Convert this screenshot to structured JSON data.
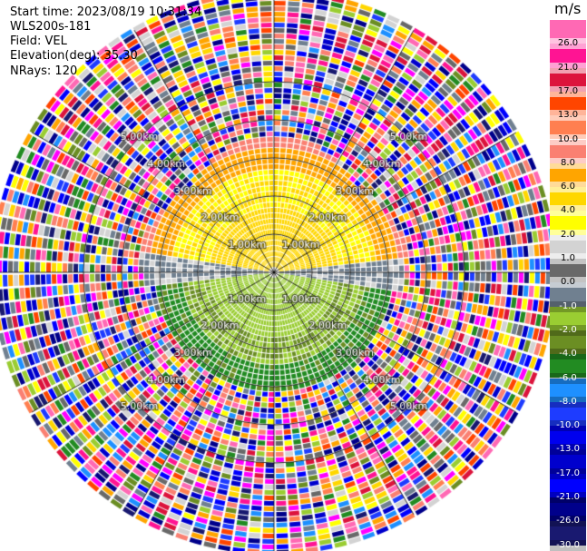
{
  "header": {
    "start_time": "Start time: 2023/08/19 10:31:34",
    "instrument": "WLS200s-181",
    "field": "Field: VEL",
    "elevation": "Elevation(deg): 35.30",
    "nrays": "NRays: 120"
  },
  "chart_data": {
    "type": "heatmap",
    "projection": "polar-ppi",
    "field": "VEL",
    "unit": "m/s",
    "n_rays": 120,
    "range_rings_km": [
      1,
      2,
      3,
      4,
      5
    ],
    "ring_label_text": [
      "1.00km",
      "2.00km",
      "3.00km",
      "4.00km",
      "5.00km"
    ],
    "ring_label_bearings_deg": [
      -45,
      45,
      135,
      -135
    ],
    "radial_lines_deg": [
      0,
      30,
      60,
      90,
      120,
      150,
      180,
      210,
      240,
      270,
      300,
      330
    ],
    "colorbar": {
      "levels": [
        -30.0,
        -26.0,
        -21.0,
        -17.0,
        -13.0,
        -10.0,
        -8.0,
        -6.0,
        -4.0,
        -2.0,
        -1.0,
        0.0,
        1.0,
        2.0,
        4.0,
        6.0,
        8.0,
        10.0,
        13.0,
        17.0,
        21.0,
        26.0
      ],
      "labels": [
        "-30.0",
        "-26.0",
        "-21.0",
        "-17.0",
        "-13.0",
        "-10.0",
        "-8.0",
        "-6.0",
        "-4.0",
        "-2.0",
        "-1.0",
        "0.0",
        "1.0",
        "2.0",
        "4.0",
        "6.0",
        "8.0",
        "10.0",
        "13.0",
        "17.0",
        "21.0",
        "26.0"
      ],
      "colors": [
        "#191970",
        "#00008b",
        "#0000ff",
        "#0000cd",
        "#0000ee",
        "#1e3cff",
        "#1e90ff",
        "#228b22",
        "#6b8e23",
        "#9acd32",
        "#708090",
        "#696969",
        "#d3d3d3",
        "#ffff00",
        "#ffd700",
        "#ffa500",
        "#fa8072",
        "#ff7f50",
        "#ff4500",
        "#dc143c",
        "#ff1493",
        "#ff69b4"
      ]
    },
    "colors": {
      "background": "#ffffff",
      "grid": "#000000",
      "noise_palette": [
        "#ff1493",
        "#ffff00",
        "#0000cd",
        "#ff4500",
        "#228b22",
        "#191970",
        "#708090",
        "#9acd32",
        "#fa8072",
        "#ffa500",
        "#dc143c",
        "#1e90ff",
        "#00008b",
        "#6b8e23",
        "#ff69b4",
        "#d3d3d3",
        "#ffd700",
        "#0000ff",
        "#ff7f50",
        "#1e3cff",
        "#696969",
        "#ff00ff"
      ]
    }
  }
}
